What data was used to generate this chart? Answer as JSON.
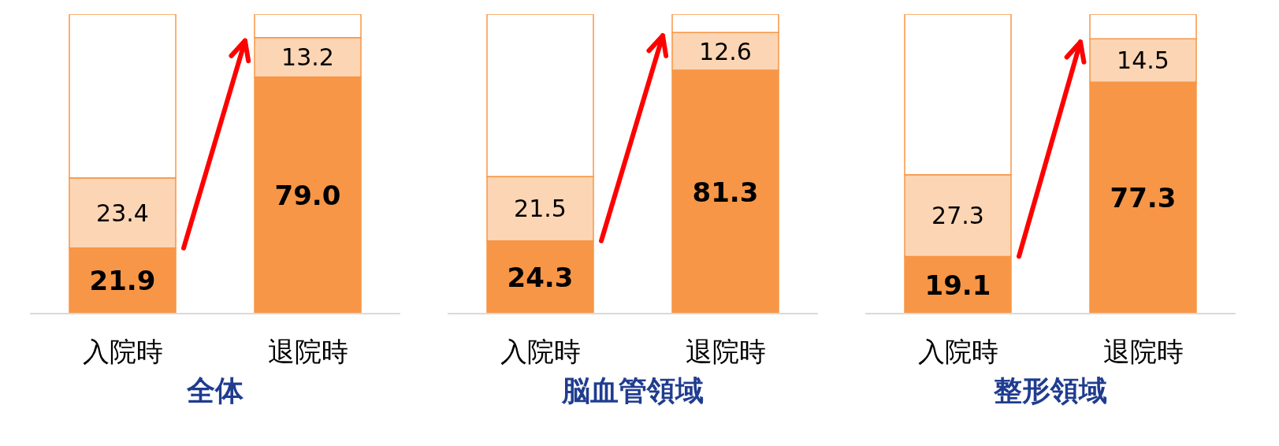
{
  "chart_data": [
    {
      "type": "bar",
      "stacked": true,
      "title": "全体",
      "categories": [
        "入院時",
        "退院時"
      ],
      "ylim": [
        0,
        100
      ],
      "series": [
        {
          "color": "#f79646",
          "values": [
            21.9,
            79.0
          ],
          "value_labels": [
            "21.9",
            "79.0"
          ]
        },
        {
          "color": "#fcd5b4",
          "values": [
            23.4,
            13.2
          ],
          "value_labels": [
            "23.4",
            "13.2"
          ]
        },
        {
          "color": "#ffffff",
          "values": [
            54.7,
            7.8
          ],
          "value_labels": [
            null,
            null
          ]
        }
      ]
    },
    {
      "type": "bar",
      "stacked": true,
      "title": "脳血管領域",
      "categories": [
        "入院時",
        "退院時"
      ],
      "ylim": [
        0,
        100
      ],
      "series": [
        {
          "color": "#f79646",
          "values": [
            24.3,
            81.3
          ],
          "value_labels": [
            "24.3",
            "81.3"
          ]
        },
        {
          "color": "#fcd5b4",
          "values": [
            21.5,
            12.6
          ],
          "value_labels": [
            "21.5",
            "12.6"
          ]
        },
        {
          "color": "#ffffff",
          "values": [
            54.2,
            6.1
          ],
          "value_labels": [
            null,
            null
          ]
        }
      ]
    },
    {
      "type": "bar",
      "stacked": true,
      "title": "整形領域",
      "categories": [
        "入院時",
        "退院時"
      ],
      "ylim": [
        0,
        100
      ],
      "series": [
        {
          "color": "#f79646",
          "values": [
            19.1,
            77.3
          ],
          "value_labels": [
            "19.1",
            "77.3"
          ]
        },
        {
          "color": "#fcd5b4",
          "values": [
            27.3,
            14.5
          ],
          "value_labels": [
            "27.3",
            "14.5"
          ]
        },
        {
          "color": "#ffffff",
          "values": [
            53.6,
            8.2
          ],
          "value_labels": [
            null,
            null
          ]
        }
      ]
    }
  ]
}
